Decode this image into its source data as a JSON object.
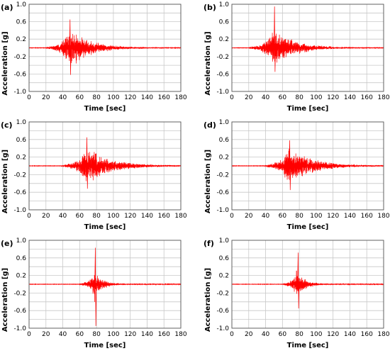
{
  "chart_data": [
    {
      "type": "line",
      "panel_label": "(a)",
      "xlabel": "Time [sec]",
      "ylabel": "Acceleration [g]",
      "xlim": [
        0,
        180
      ],
      "ylim": [
        -1.0,
        1.0
      ],
      "x_ticks": [
        "0",
        "20",
        "40",
        "60",
        "80",
        "100",
        "120",
        "140",
        "160",
        "180"
      ],
      "y_ticks": [
        "1.0",
        "0.6",
        "0.2",
        "-0.2",
        "-0.6",
        "-1.0"
      ],
      "grid": true,
      "series_color": "#ff0000",
      "record": {
        "start": 20,
        "peak_time": 48,
        "end": 180,
        "max": 0.65,
        "min": -0.62,
        "envelope_before_peak": 0.2,
        "envelope_after_peak": 0.32
      }
    },
    {
      "type": "line",
      "panel_label": "(b)",
      "xlabel": "Time [sec]",
      "ylabel": "Acceleration [g]",
      "xlim": [
        0,
        180
      ],
      "ylim": [
        -1.0,
        1.0
      ],
      "x_ticks": [
        "0",
        "20",
        "40",
        "60",
        "80",
        "100",
        "120",
        "140",
        "160",
        "180"
      ],
      "y_ticks": [
        "1.0",
        "0.6",
        "0.2",
        "-0.2",
        "-0.6",
        "-1.0"
      ],
      "grid": true,
      "series_color": "#ff0000",
      "record": {
        "start": 20,
        "peak_time": 50,
        "end": 180,
        "max": 0.95,
        "min": -0.55,
        "envelope_before_peak": 0.2,
        "envelope_after_peak": 0.32
      }
    },
    {
      "type": "line",
      "panel_label": "(c)",
      "xlabel": "Time [sec]",
      "ylabel": "Acceleration [g]",
      "xlim": [
        0,
        180
      ],
      "ylim": [
        -1.0,
        1.0
      ],
      "x_ticks": [
        "0",
        "20",
        "40",
        "60",
        "80",
        "100",
        "120",
        "140",
        "160",
        "180"
      ],
      "y_ticks": [
        "1.0",
        "0.6",
        "0.2",
        "-0.2",
        "-0.6",
        "-1.0"
      ],
      "grid": true,
      "series_color": "#ff0000",
      "record": {
        "start": 38,
        "peak_time": 68,
        "end": 180,
        "max": 0.65,
        "min": -0.52,
        "envelope_before_peak": 0.2,
        "envelope_after_peak": 0.32
      }
    },
    {
      "type": "line",
      "panel_label": "(d)",
      "xlabel": "Time [sec]",
      "ylabel": "Acceleration [g]",
      "xlim": [
        0,
        180
      ],
      "ylim": [
        -1.0,
        1.0
      ],
      "x_ticks": [
        "0",
        "20",
        "40",
        "60",
        "80",
        "100",
        "120",
        "140",
        "160",
        "180"
      ],
      "y_ticks": [
        "1.0",
        "0.6",
        "0.2",
        "-0.2",
        "-0.6",
        "-1.0"
      ],
      "grid": true,
      "series_color": "#ff0000",
      "record": {
        "start": 38,
        "peak_time": 68,
        "end": 180,
        "max": 0.58,
        "min": -0.55,
        "envelope_before_peak": 0.2,
        "envelope_after_peak": 0.3
      }
    },
    {
      "type": "line",
      "panel_label": "(e)",
      "xlabel": "Time [sec]",
      "ylabel": "Acceleration [g]",
      "xlim": [
        0,
        180
      ],
      "ylim": [
        -1.0,
        1.0
      ],
      "x_ticks": [
        "0",
        "20",
        "40",
        "60",
        "80",
        "100",
        "120",
        "140",
        "160",
        "180"
      ],
      "y_ticks": [
        "1.0",
        "0.6",
        "0.2",
        "-0.2",
        "-0.6",
        "-1.0"
      ],
      "grid": true,
      "series_color": "#ff0000",
      "record": {
        "start": 60,
        "peak_time": 78,
        "end": 180,
        "max": 0.83,
        "min": -0.95,
        "envelope_before_peak": 0.15,
        "envelope_after_peak": 0.15
      }
    },
    {
      "type": "line",
      "panel_label": "(f)",
      "xlabel": "Time [sec]",
      "ylabel": "Acceleration [g]",
      "xlim": [
        0,
        180
      ],
      "ylim": [
        -1.0,
        1.0
      ],
      "x_ticks": [
        "0",
        "20",
        "40",
        "60",
        "80",
        "100",
        "120",
        "140",
        "160",
        "180"
      ],
      "y_ticks": [
        "1.0",
        "0.6",
        "0.2",
        "-0.2",
        "-0.6",
        "-1.0"
      ],
      "grid": true,
      "series_color": "#ff0000",
      "record": {
        "start": 60,
        "peak_time": 78,
        "end": 180,
        "max": 0.72,
        "min": -0.55,
        "envelope_before_peak": 0.15,
        "envelope_after_peak": 0.15
      }
    }
  ]
}
